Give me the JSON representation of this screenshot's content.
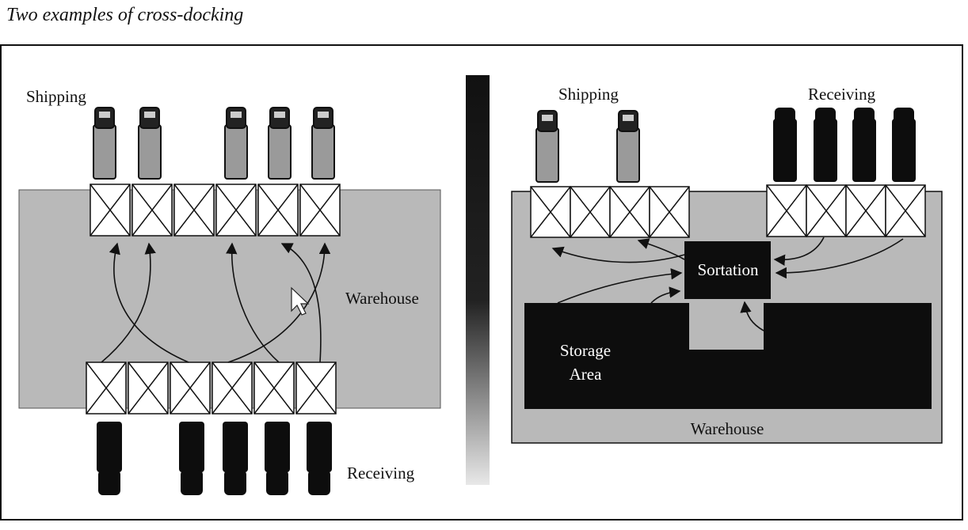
{
  "caption": "Two examples of cross-docking",
  "left_diagram": {
    "shipping_label": "Shipping",
    "receiving_label": "Receiving",
    "warehouse_label": "Warehouse"
  },
  "right_diagram": {
    "shipping_label": "Shipping",
    "receiving_label": "Receiving",
    "sortation_label": "Sortation",
    "storage_label_line1": "Storage",
    "storage_label_line2": "Area",
    "warehouse_label": "Warehouse"
  },
  "colors": {
    "warehouse_fill": "#b9b9b9",
    "dark_fill": "#0d0d0d",
    "dock_fill": "#ffffff",
    "ship_truck_fill": "#9a9a9a"
  }
}
